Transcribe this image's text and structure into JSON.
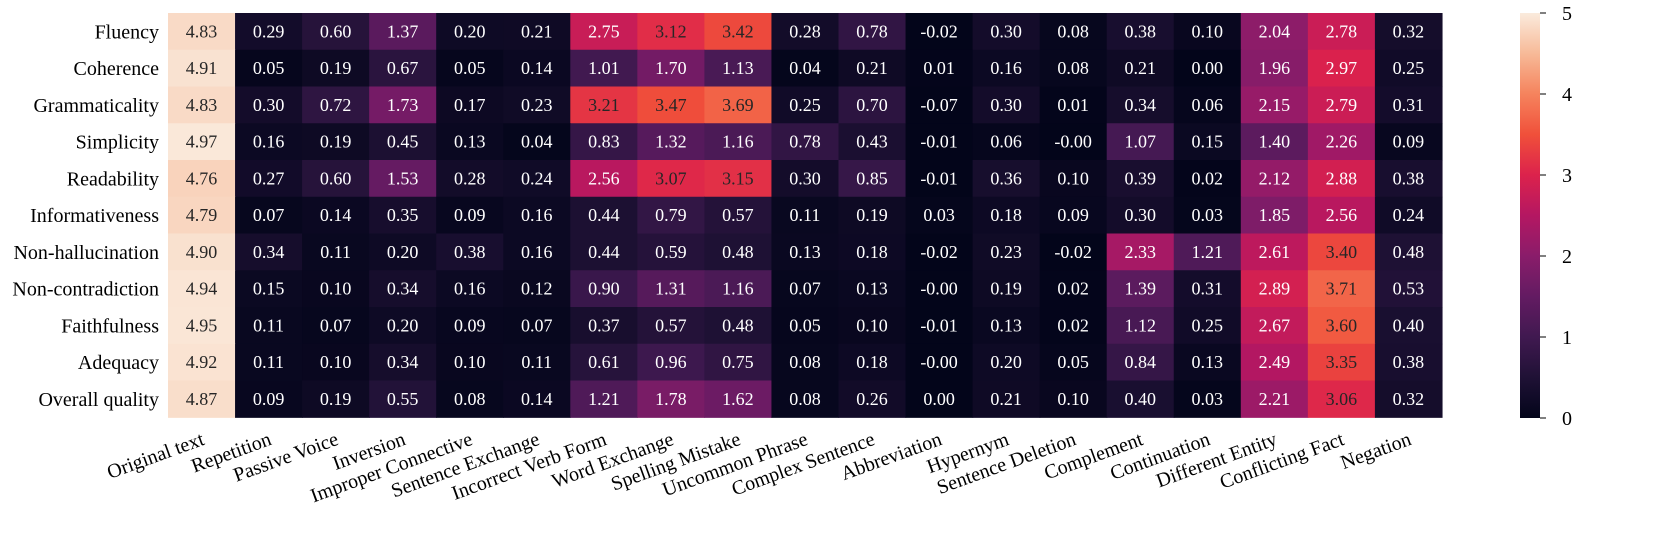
{
  "chart_data": {
    "type": "heatmap",
    "title": "",
    "xlabel": "",
    "ylabel": "",
    "rows": [
      "Fluency",
      "Coherence",
      "Grammaticality",
      "Simplicity",
      "Readability",
      "Informativeness",
      "Non-hallucination",
      "Non-contradiction",
      "Faithfulness",
      "Adequacy",
      "Overall quality"
    ],
    "columns": [
      "Original text",
      "Repetition",
      "Passive Voice",
      "Inversion",
      "Improper Connective",
      "Sentence Exchange",
      "Incorrect Verb Form",
      "Word Exchange",
      "Spelling Mistake",
      "Uncommon Phrase",
      "Complex Sentence",
      "Abbreviation",
      "Hypernym",
      "Sentence Deletion",
      "Complement",
      "Continuation",
      "Different Entity",
      "Conflicting Fact",
      "Negation"
    ],
    "values": [
      [
        "4.83",
        "0.29",
        "0.60",
        "1.37",
        "0.20",
        "0.21",
        "2.75",
        "3.12",
        "3.42",
        "0.28",
        "0.78",
        "-0.02",
        "0.30",
        "0.08",
        "0.38",
        "0.10",
        "2.04",
        "2.78",
        "0.32"
      ],
      [
        "4.91",
        "0.05",
        "0.19",
        "0.67",
        "0.05",
        "0.14",
        "1.01",
        "1.70",
        "1.13",
        "0.04",
        "0.21",
        "0.01",
        "0.16",
        "0.08",
        "0.21",
        "0.00",
        "1.96",
        "2.97",
        "0.25"
      ],
      [
        "4.83",
        "0.30",
        "0.72",
        "1.73",
        "0.17",
        "0.23",
        "3.21",
        "3.47",
        "3.69",
        "0.25",
        "0.70",
        "-0.07",
        "0.30",
        "0.01",
        "0.34",
        "0.06",
        "2.15",
        "2.79",
        "0.31"
      ],
      [
        "4.97",
        "0.16",
        "0.19",
        "0.45",
        "0.13",
        "0.04",
        "0.83",
        "1.32",
        "1.16",
        "0.78",
        "0.43",
        "-0.01",
        "0.06",
        "-0.00",
        "1.07",
        "0.15",
        "1.40",
        "2.26",
        "0.09"
      ],
      [
        "4.76",
        "0.27",
        "0.60",
        "1.53",
        "0.28",
        "0.24",
        "2.56",
        "3.07",
        "3.15",
        "0.30",
        "0.85",
        "-0.01",
        "0.36",
        "0.10",
        "0.39",
        "0.02",
        "2.12",
        "2.88",
        "0.38"
      ],
      [
        "4.79",
        "0.07",
        "0.14",
        "0.35",
        "0.09",
        "0.16",
        "0.44",
        "0.79",
        "0.57",
        "0.11",
        "0.19",
        "0.03",
        "0.18",
        "0.09",
        "0.30",
        "0.03",
        "1.85",
        "2.56",
        "0.24"
      ],
      [
        "4.90",
        "0.34",
        "0.11",
        "0.20",
        "0.38",
        "0.16",
        "0.44",
        "0.59",
        "0.48",
        "0.13",
        "0.18",
        "-0.02",
        "0.23",
        "-0.02",
        "2.33",
        "1.21",
        "2.61",
        "3.40",
        "0.48"
      ],
      [
        "4.94",
        "0.15",
        "0.10",
        "0.34",
        "0.16",
        "0.12",
        "0.90",
        "1.31",
        "1.16",
        "0.07",
        "0.13",
        "-0.00",
        "0.19",
        "0.02",
        "1.39",
        "0.31",
        "2.89",
        "3.71",
        "0.53"
      ],
      [
        "4.95",
        "0.11",
        "0.07",
        "0.20",
        "0.09",
        "0.07",
        "0.37",
        "0.57",
        "0.48",
        "0.05",
        "0.10",
        "-0.01",
        "0.13",
        "0.02",
        "1.12",
        "0.25",
        "2.67",
        "3.60",
        "0.40"
      ],
      [
        "4.92",
        "0.11",
        "0.10",
        "0.34",
        "0.10",
        "0.11",
        "0.61",
        "0.96",
        "0.75",
        "0.08",
        "0.18",
        "-0.00",
        "0.20",
        "0.05",
        "0.84",
        "0.13",
        "2.49",
        "3.35",
        "0.38"
      ],
      [
        "4.87",
        "0.09",
        "0.19",
        "0.55",
        "0.08",
        "0.14",
        "1.21",
        "1.78",
        "1.62",
        "0.08",
        "0.26",
        "0.00",
        "0.21",
        "0.10",
        "0.40",
        "0.03",
        "2.21",
        "3.06",
        "0.32"
      ]
    ],
    "colorbar": {
      "range": [
        0,
        5
      ],
      "ticks": [
        "0",
        "1",
        "2",
        "3",
        "4",
        "5"
      ],
      "colormap": "rocket"
    },
    "legend": "right"
  }
}
